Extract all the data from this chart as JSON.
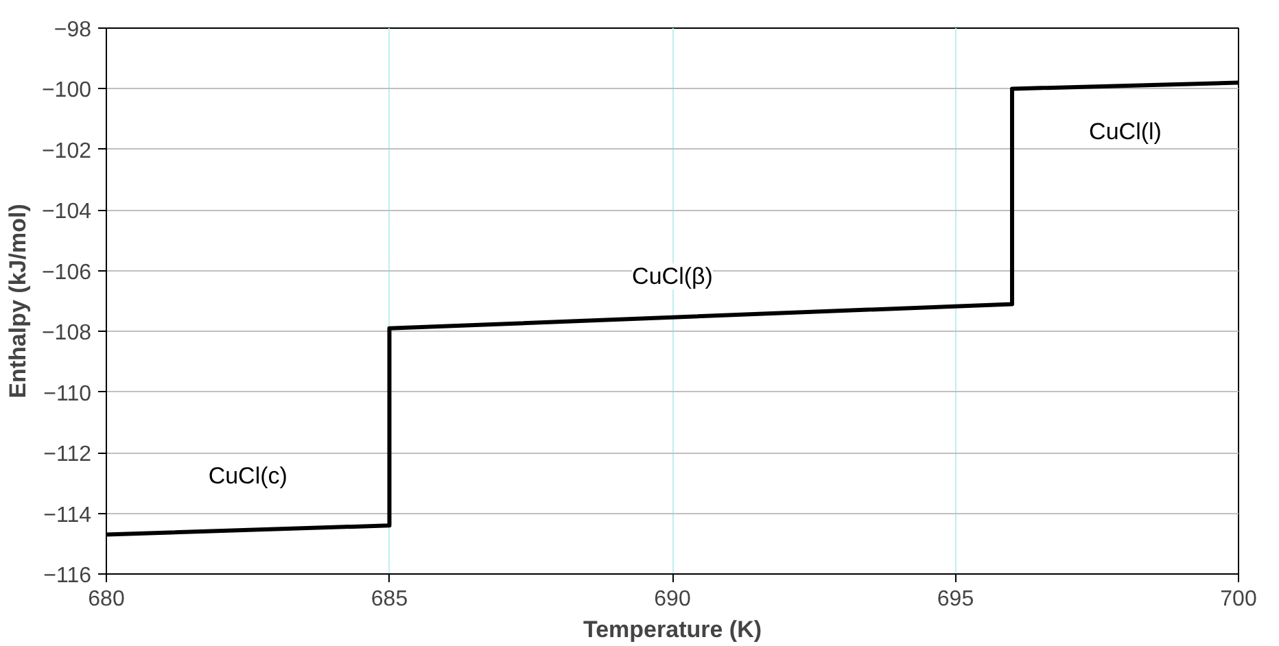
{
  "chart_data": {
    "type": "line",
    "xlabel": "Temperature (K)",
    "ylabel": "Enthalpy (kJ/mol)",
    "x": [
      680,
      685,
      685,
      696,
      696,
      700
    ],
    "series": [
      {
        "color": "#000000",
        "values": [
          -114.7,
          -114.4,
          -107.9,
          -107.1,
          -100.0,
          -99.8
        ]
      }
    ],
    "xlim": [
      680,
      700
    ],
    "xticks": [
      680,
      685,
      690,
      695,
      700
    ],
    "ylim": [
      -116,
      -98
    ],
    "yticks": [
      -116,
      -114,
      -112,
      -110,
      -108,
      -106,
      -104,
      -102,
      -100,
      -98
    ],
    "grid": true,
    "marker": "none",
    "line_style": "solid",
    "annotations": [
      "CuCl(c)",
      "CuCl(β)",
      "CuCl(l)"
    ]
  }
}
